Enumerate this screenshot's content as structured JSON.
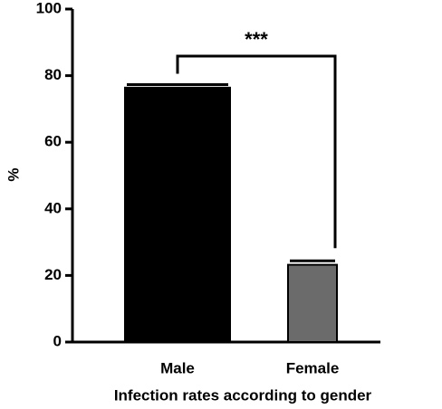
{
  "chart_data": {
    "type": "bar",
    "categories": [
      "Male",
      "Female"
    ],
    "values": [
      76.4,
      23.2
    ],
    "errors": [
      0.9,
      1.2
    ],
    "colors": [
      "#000000",
      "#6b6b6b"
    ],
    "ylim": [
      0,
      100
    ],
    "yticks": [
      0,
      20,
      40,
      60,
      80,
      100
    ],
    "x_label": "Infection rates according to gender",
    "y_label": "%",
    "annotation": "***"
  }
}
